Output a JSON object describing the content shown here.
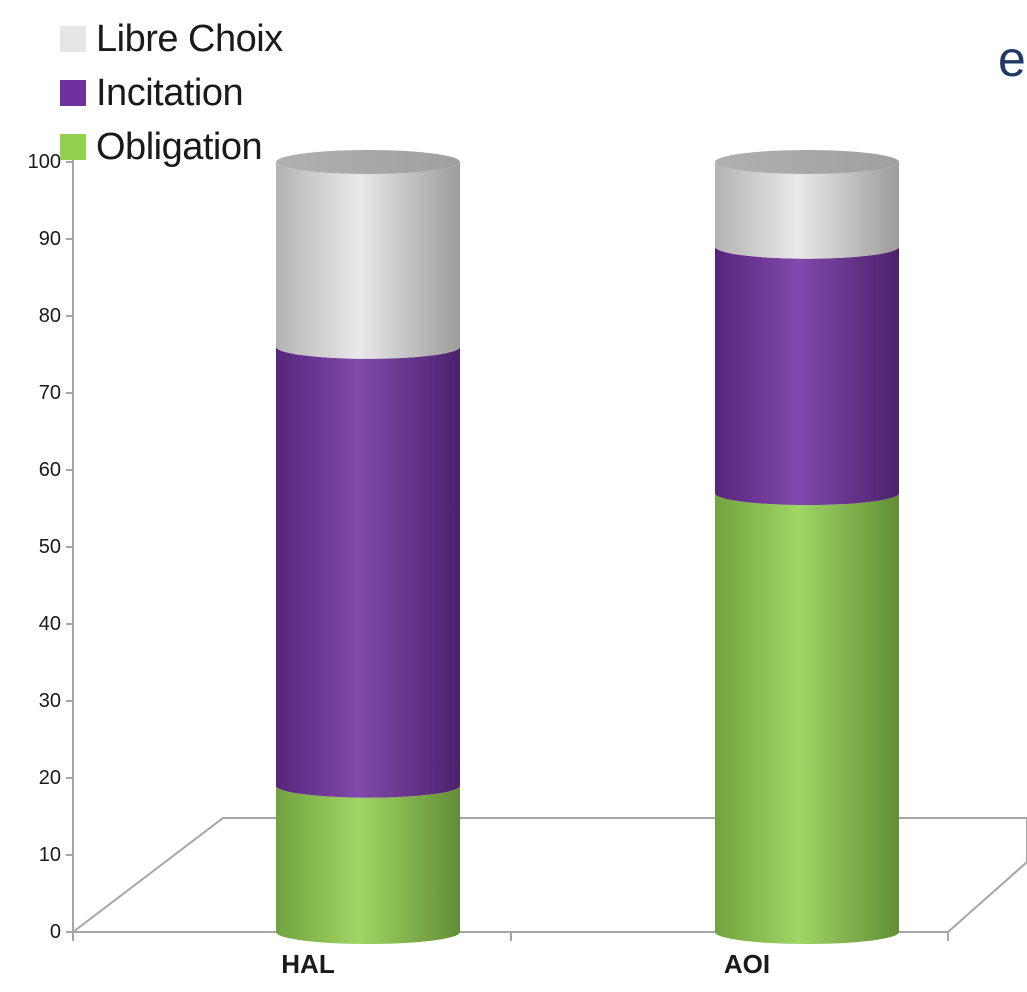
{
  "chart_data": {
    "type": "bar",
    "stacked": true,
    "style": "3d-cylinder",
    "categories": [
      "HAL",
      "AOI"
    ],
    "series": [
      {
        "name": "Obligation",
        "values": [
          19,
          57
        ],
        "color": "#92d050"
      },
      {
        "name": "Incitation",
        "values": [
          57,
          32
        ],
        "color": "#7030a0"
      },
      {
        "name": "Libre Choix",
        "values": [
          24,
          11
        ],
        "color": "#e6e6e6"
      }
    ],
    "ylim": [
      0,
      100
    ],
    "yticks": [
      0,
      10,
      20,
      30,
      40,
      50,
      60,
      70,
      80,
      90,
      100
    ],
    "legend_position": "top-left",
    "grid": false
  },
  "corner_text": "e"
}
